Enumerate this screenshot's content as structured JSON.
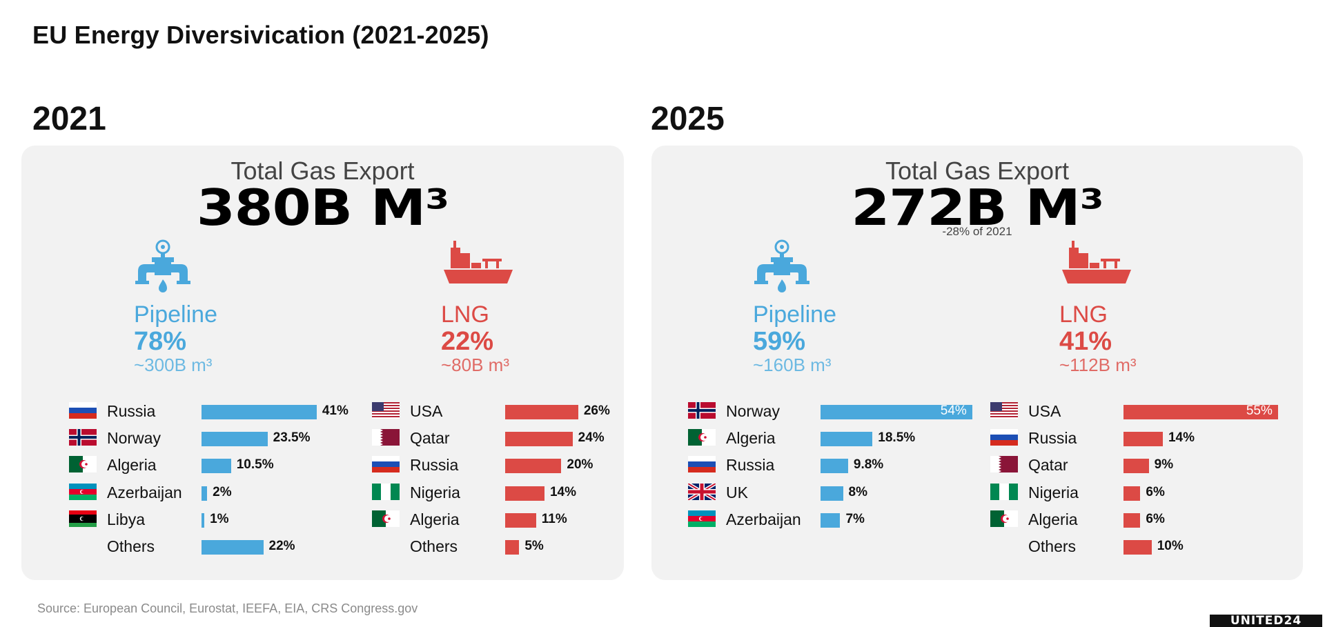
{
  "title": "EU Energy Diversivication (2021-2025)",
  "source": "Source: European Council, Eurostat, IEEFA, EIA, CRS Congress.gov",
  "logo_text": "UNITED24",
  "colors": {
    "pipeline": "#4aa8dc",
    "lng": "#dc4a45",
    "panel": "#f2f2f2"
  },
  "icons": {
    "pipeline": "gas-pipeline-icon",
    "lng": "lng-tanker-ship-icon"
  },
  "chart_data": [
    {
      "type": "bar",
      "year": "2021",
      "total_label": "Total Gas Export",
      "total_value": "380B M³",
      "total_note": "",
      "pipeline": {
        "label": "Pipeline",
        "share": "78%",
        "volume": "~300B m³"
      },
      "lng": {
        "label": "LNG",
        "share": "22%",
        "volume": "~80B m³"
      },
      "pipeline_sources": [
        {
          "country": "Russia",
          "flag": "russia",
          "value": 41,
          "label": "41%"
        },
        {
          "country": "Norway",
          "flag": "norway",
          "value": 23.5,
          "label": "23.5%"
        },
        {
          "country": "Algeria",
          "flag": "algeria",
          "value": 10.5,
          "label": "10.5%"
        },
        {
          "country": "Azerbaijan",
          "flag": "azerbaijan",
          "value": 2,
          "label": "2%"
        },
        {
          "country": "Libya",
          "flag": "libya",
          "value": 1,
          "label": "1%"
        },
        {
          "country": "Others",
          "flag": "",
          "value": 22,
          "label": "22%"
        }
      ],
      "lng_sources": [
        {
          "country": "USA",
          "flag": "usa",
          "value": 26,
          "label": "26%"
        },
        {
          "country": "Qatar",
          "flag": "qatar",
          "value": 24,
          "label": "24%"
        },
        {
          "country": "Russia",
          "flag": "russia",
          "value": 20,
          "label": "20%"
        },
        {
          "country": "Nigeria",
          "flag": "nigeria",
          "value": 14,
          "label": "14%"
        },
        {
          "country": "Algeria",
          "flag": "algeria",
          "value": 11,
          "label": "11%"
        },
        {
          "country": "Others",
          "flag": "",
          "value": 5,
          "label": "5%"
        }
      ]
    },
    {
      "type": "bar",
      "year": "2025",
      "total_label": "Total Gas Export",
      "total_value": "272B M³",
      "total_note": "-28% of 2021",
      "pipeline": {
        "label": "Pipeline",
        "share": "59%",
        "volume": "~160B m³"
      },
      "lng": {
        "label": "LNG",
        "share": "41%",
        "volume": "~112B m³"
      },
      "pipeline_sources": [
        {
          "country": "Norway",
          "flag": "norway",
          "value": 54,
          "label": "54%"
        },
        {
          "country": "Algeria",
          "flag": "algeria",
          "value": 18.5,
          "label": "18.5%"
        },
        {
          "country": "Russia",
          "flag": "russia",
          "value": 9.8,
          "label": "9.8%"
        },
        {
          "country": "UK",
          "flag": "uk",
          "value": 8,
          "label": "8%"
        },
        {
          "country": "Azerbaijan",
          "flag": "azerbaijan",
          "value": 7,
          "label": "7%"
        }
      ],
      "lng_sources": [
        {
          "country": "USA",
          "flag": "usa",
          "value": 55,
          "label": "55%"
        },
        {
          "country": "Russia",
          "flag": "russia",
          "value": 14,
          "label": "14%"
        },
        {
          "country": "Qatar",
          "flag": "qatar",
          "value": 9,
          "label": "9%"
        },
        {
          "country": "Nigeria",
          "flag": "nigeria",
          "value": 6,
          "label": "6%"
        },
        {
          "country": "Algeria",
          "flag": "algeria",
          "value": 6,
          "label": "6%"
        },
        {
          "country": "Others",
          "flag": "",
          "value": 10,
          "label": "10%"
        }
      ]
    }
  ]
}
